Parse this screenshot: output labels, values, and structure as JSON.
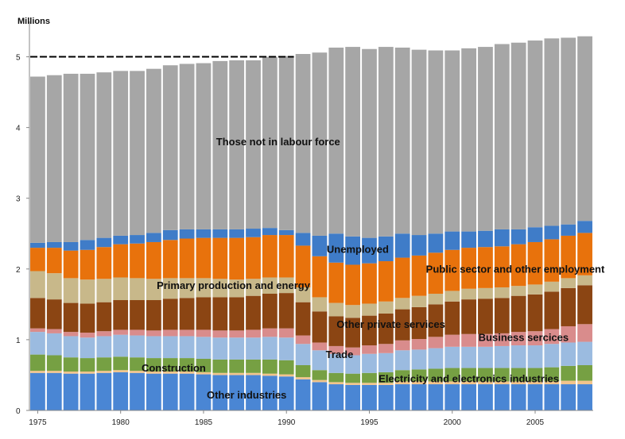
{
  "chart_data": {
    "type": "stacked-bar",
    "unit_label": "Millions",
    "x": [
      1975,
      1976,
      1977,
      1978,
      1979,
      1980,
      1981,
      1982,
      1983,
      1984,
      1985,
      1986,
      1987,
      1988,
      1989,
      1990,
      1991,
      1992,
      1993,
      1994,
      1995,
      1996,
      1997,
      1998,
      1999,
      2000,
      2001,
      2002,
      2003,
      2004,
      2005,
      2006,
      2007,
      2008
    ],
    "x_ticks": [
      1975,
      1980,
      1985,
      1990,
      1995,
      2000,
      2005
    ],
    "ylim": [
      0,
      5.5
    ],
    "y_ticks": [
      0,
      1,
      2,
      3,
      4,
      5
    ],
    "reference_line": {
      "value": 5.0,
      "from": 1975,
      "to": 1990
    },
    "series": [
      {
        "name": "Other industries",
        "color": "#4a86d4",
        "values": [
          0.53,
          0.53,
          0.52,
          0.52,
          0.53,
          0.54,
          0.53,
          0.52,
          0.52,
          0.52,
          0.51,
          0.5,
          0.5,
          0.5,
          0.49,
          0.48,
          0.44,
          0.4,
          0.37,
          0.36,
          0.36,
          0.36,
          0.37,
          0.37,
          0.37,
          0.37,
          0.37,
          0.37,
          0.37,
          0.37,
          0.37,
          0.37,
          0.37,
          0.37
        ]
      },
      {
        "name": "Electricity and electronics industries",
        "color": "#f2c48c",
        "values": [
          0.03,
          0.03,
          0.03,
          0.03,
          0.03,
          0.03,
          0.03,
          0.03,
          0.03,
          0.03,
          0.03,
          0.03,
          0.03,
          0.03,
          0.03,
          0.03,
          0.03,
          0.03,
          0.03,
          0.03,
          0.03,
          0.03,
          0.04,
          0.04,
          0.04,
          0.04,
          0.04,
          0.04,
          0.04,
          0.04,
          0.04,
          0.04,
          0.05,
          0.05
        ]
      },
      {
        "name": "Construction",
        "color": "#76a043",
        "values": [
          0.23,
          0.22,
          0.2,
          0.19,
          0.19,
          0.19,
          0.19,
          0.19,
          0.19,
          0.19,
          0.19,
          0.19,
          0.19,
          0.19,
          0.2,
          0.2,
          0.17,
          0.14,
          0.13,
          0.13,
          0.14,
          0.15,
          0.16,
          0.17,
          0.18,
          0.19,
          0.19,
          0.19,
          0.19,
          0.19,
          0.19,
          0.2,
          0.21,
          0.22
        ]
      },
      {
        "name": "Trade",
        "color": "#9bbbe0",
        "values": [
          0.32,
          0.31,
          0.3,
          0.29,
          0.3,
          0.31,
          0.31,
          0.31,
          0.31,
          0.31,
          0.31,
          0.31,
          0.31,
          0.31,
          0.32,
          0.32,
          0.3,
          0.28,
          0.27,
          0.26,
          0.27,
          0.27,
          0.28,
          0.28,
          0.29,
          0.3,
          0.3,
          0.3,
          0.31,
          0.32,
          0.32,
          0.33,
          0.33,
          0.33
        ]
      },
      {
        "name": "Business sercices",
        "color": "#d98c8c",
        "values": [
          0.05,
          0.06,
          0.06,
          0.07,
          0.07,
          0.07,
          0.08,
          0.08,
          0.09,
          0.09,
          0.1,
          0.1,
          0.1,
          0.11,
          0.12,
          0.13,
          0.12,
          0.11,
          0.11,
          0.11,
          0.12,
          0.13,
          0.14,
          0.15,
          0.16,
          0.17,
          0.18,
          0.18,
          0.18,
          0.19,
          0.2,
          0.21,
          0.23,
          0.25
        ]
      },
      {
        "name": "Other private services",
        "color": "#8b4513",
        "values": [
          0.43,
          0.42,
          0.41,
          0.41,
          0.41,
          0.42,
          0.42,
          0.43,
          0.44,
          0.45,
          0.46,
          0.47,
          0.47,
          0.48,
          0.49,
          0.5,
          0.47,
          0.44,
          0.42,
          0.42,
          0.42,
          0.43,
          0.44,
          0.45,
          0.46,
          0.47,
          0.49,
          0.5,
          0.5,
          0.51,
          0.52,
          0.53,
          0.54,
          0.55
        ]
      },
      {
        "name": "Primary production and energy",
        "color": "#c8b88a",
        "values": [
          0.38,
          0.37,
          0.35,
          0.34,
          0.33,
          0.32,
          0.31,
          0.3,
          0.29,
          0.28,
          0.27,
          0.26,
          0.25,
          0.24,
          0.23,
          0.22,
          0.21,
          0.2,
          0.19,
          0.18,
          0.17,
          0.17,
          0.16,
          0.16,
          0.15,
          0.15,
          0.15,
          0.15,
          0.15,
          0.14,
          0.14,
          0.14,
          0.14,
          0.14
        ]
      },
      {
        "name": "Public sector and other employment",
        "color": "#e8720c",
        "values": [
          0.33,
          0.36,
          0.39,
          0.42,
          0.45,
          0.47,
          0.49,
          0.52,
          0.54,
          0.56,
          0.57,
          0.58,
          0.59,
          0.59,
          0.6,
          0.6,
          0.59,
          0.58,
          0.57,
          0.57,
          0.57,
          0.57,
          0.57,
          0.57,
          0.58,
          0.58,
          0.58,
          0.58,
          0.58,
          0.59,
          0.6,
          0.6,
          0.6,
          0.6
        ]
      },
      {
        "name": "Unemployed",
        "color": "#3f7cc8",
        "values": [
          0.07,
          0.08,
          0.12,
          0.14,
          0.13,
          0.12,
          0.12,
          0.13,
          0.14,
          0.13,
          0.12,
          0.12,
          0.12,
          0.12,
          0.1,
          0.07,
          0.18,
          0.29,
          0.41,
          0.4,
          0.36,
          0.35,
          0.34,
          0.29,
          0.27,
          0.26,
          0.23,
          0.23,
          0.24,
          0.21,
          0.21,
          0.19,
          0.16,
          0.17
        ]
      },
      {
        "name": "Those not in labour force",
        "color": "#a6a6a6",
        "values": [
          2.35,
          2.36,
          2.38,
          2.35,
          2.34,
          2.33,
          2.32,
          2.32,
          2.33,
          2.34,
          2.35,
          2.38,
          2.39,
          2.38,
          2.42,
          2.46,
          2.53,
          2.59,
          2.63,
          2.68,
          2.67,
          2.68,
          2.63,
          2.62,
          2.59,
          2.56,
          2.59,
          2.6,
          2.62,
          2.64,
          2.64,
          2.65,
          2.64,
          2.61
        ]
      }
    ],
    "annotations": [
      {
        "text": "Those not in labour force",
        "x": 1989.5,
        "y": 3.75
      },
      {
        "text": "Unemployed",
        "x": 1994.3,
        "y": 2.23
      },
      {
        "text": "Public sector and other employment",
        "x": 2003.8,
        "y": 1.95
      },
      {
        "text": "Primary production and energy",
        "x": 1986.8,
        "y": 1.72
      },
      {
        "text": "Other private services",
        "x": 1996.3,
        "y": 1.17
      },
      {
        "text": "Business sercices",
        "x": 2004.3,
        "y": 0.98
      },
      {
        "text": "Trade",
        "x": 1993.2,
        "y": 0.74
      },
      {
        "text": "Construction",
        "x": 1983.2,
        "y": 0.55
      },
      {
        "text": "Electricity and electronics industries",
        "x": 2001.0,
        "y": 0.4
      },
      {
        "text": "Other industries",
        "x": 1987.6,
        "y": 0.17
      }
    ]
  }
}
